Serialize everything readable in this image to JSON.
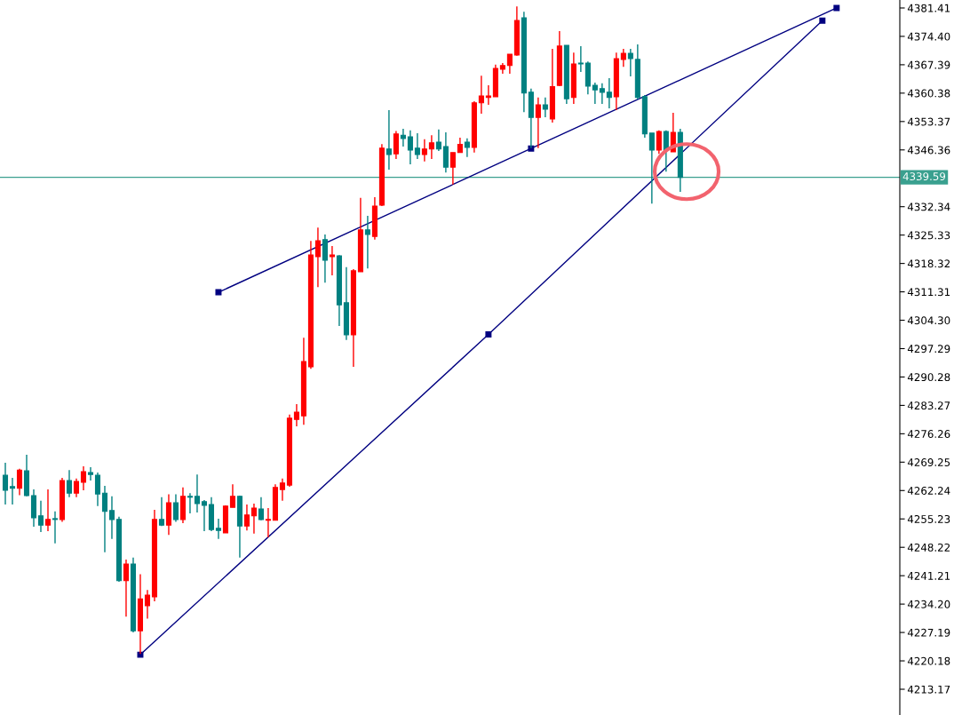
{
  "chart_data": {
    "type": "candlestick",
    "categories": [
      null,
      null,
      null,
      null,
      null,
      null,
      null,
      null,
      null,
      null,
      null,
      null,
      null,
      null,
      null,
      null,
      null,
      null,
      null,
      null,
      null,
      null,
      null,
      null,
      null,
      null,
      null,
      null,
      null,
      null,
      null,
      null,
      null,
      null,
      null,
      null,
      null,
      null,
      null,
      null,
      null,
      null,
      null,
      null,
      null,
      null,
      null,
      null,
      null,
      null,
      null,
      null,
      null,
      null,
      null,
      null,
      null,
      null,
      null,
      null,
      null,
      null,
      null,
      null,
      null,
      null,
      null,
      null,
      null,
      null,
      null,
      null,
      null,
      null,
      null,
      null,
      null,
      null,
      null,
      null,
      null,
      null,
      null,
      null,
      null,
      null,
      null,
      null,
      null,
      null,
      null,
      null,
      null,
      null,
      null,
      null,
      null,
      null,
      null,
      null,
      null,
      null,
      null,
      null,
      null,
      null,
      null,
      null,
      null,
      null,
      null,
      null,
      null,
      null,
      null,
      null,
      null,
      null,
      null,
      null,
      null,
      null,
      null,
      null,
      null,
      null
    ],
    "ohlc": [
      [
        4266.0,
        4269.1,
        4258.8,
        4262.3
      ],
      [
        4263.2,
        4265.4,
        4258.8,
        4262.8
      ],
      [
        4262.8,
        4267.6,
        4261.1,
        4267.3
      ],
      [
        4267.1,
        4271.1,
        4260.8,
        4261.0
      ],
      [
        4261.0,
        4262.5,
        4253.3,
        4255.5
      ],
      [
        4256.0,
        4259.7,
        4252.0,
        4253.7
      ],
      [
        4253.7,
        4262.5,
        4252.2,
        4255.1
      ],
      [
        4255.3,
        4257.1,
        4249.2,
        4255.1
      ],
      [
        4255.1,
        4265.4,
        4254.5,
        4264.7
      ],
      [
        4264.7,
        4267.3,
        4260.6,
        4261.6
      ],
      [
        4261.6,
        4265.2,
        4260.6,
        4264.5
      ],
      [
        4264.3,
        4268.2,
        4262.3,
        4266.9
      ],
      [
        4266.7,
        4268.0,
        4264.7,
        4266.2
      ],
      [
        4266.0,
        4266.7,
        4258.4,
        4261.4
      ],
      [
        4261.6,
        4263.4,
        4247.0,
        4257.1
      ],
      [
        4257.3,
        4260.8,
        4250.3,
        4255.1
      ],
      [
        4255.1,
        4255.8,
        4239.7,
        4240.0
      ],
      [
        4240.0,
        4245.2,
        4231.1,
        4244.1
      ],
      [
        4244.1,
        4245.7,
        4227.2,
        4227.6
      ],
      [
        4227.6,
        4241.6,
        4221.9,
        4235.5
      ],
      [
        4233.8,
        4237.7,
        4230.6,
        4236.4
      ],
      [
        4236.0,
        4257.5,
        4234.9,
        4255.1
      ],
      [
        4255.1,
        4260.6,
        4253.5,
        4253.7
      ],
      [
        4253.7,
        4261.3,
        4251.3,
        4259.2
      ],
      [
        4259.2,
        4261.3,
        4254.5,
        4255.1
      ],
      [
        4255.1,
        4263.0,
        4254.2,
        4260.8
      ],
      [
        4260.8,
        4261.6,
        4256.6,
        4260.6
      ],
      [
        4260.8,
        4266.2,
        4256.8,
        4259.0
      ],
      [
        4259.5,
        4259.9,
        4252.2,
        4258.6
      ],
      [
        4258.8,
        4260.6,
        4252.2,
        4252.6
      ],
      [
        4252.9,
        4255.3,
        4250.3,
        4252.4
      ],
      [
        4251.8,
        4258.6,
        4251.8,
        4258.4
      ],
      [
        4258.1,
        4263.8,
        4258.1,
        4260.8
      ],
      [
        4260.8,
        4261.0,
        4245.7,
        4253.5
      ],
      [
        4253.5,
        4258.8,
        4252.4,
        4256.2
      ],
      [
        4256.0,
        4259.0,
        4251.6,
        4257.9
      ],
      [
        4257.7,
        4260.6,
        4254.9,
        4255.1
      ],
      [
        4254.9,
        4257.9,
        4250.7,
        4255.1
      ],
      [
        4254.9,
        4263.8,
        4254.9,
        4263.0
      ],
      [
        4262.5,
        4265.2,
        4259.7,
        4264.1
      ],
      [
        4263.6,
        4281.0,
        4263.2,
        4280.1
      ],
      [
        4279.8,
        4283.6,
        4278.1,
        4281.6
      ],
      [
        4280.7,
        4300.0,
        4278.5,
        4294.1
      ],
      [
        4292.8,
        4323.9,
        4292.3,
        4320.4
      ],
      [
        4320.0,
        4327.2,
        4312.5,
        4323.9
      ],
      [
        4324.2,
        4325.5,
        4313.6,
        4319.1
      ],
      [
        4320.0,
        4322.6,
        4315.4,
        4320.4
      ],
      [
        4320.2,
        4320.4,
        4302.9,
        4308.1
      ],
      [
        4308.6,
        4317.4,
        4299.4,
        4300.7
      ],
      [
        4300.7,
        4316.9,
        4292.8,
        4316.5
      ],
      [
        4316.3,
        4334.5,
        4316.3,
        4326.6
      ],
      [
        4326.6,
        4330.1,
        4317.1,
        4325.5
      ],
      [
        4325.0,
        4334.7,
        4324.2,
        4332.5
      ],
      [
        4332.7,
        4347.8,
        4332.5,
        4346.8
      ],
      [
        4346.6,
        4356.2,
        4341.5,
        4345.2
      ],
      [
        4345.4,
        4351.0,
        4344.1,
        4350.3
      ],
      [
        4350.0,
        4351.6,
        4347.2,
        4349.2
      ],
      [
        4349.6,
        4351.2,
        4342.8,
        4346.3
      ],
      [
        4346.8,
        4350.5,
        4344.1,
        4345.2
      ],
      [
        4345.2,
        4349.0,
        4343.5,
        4346.6
      ],
      [
        4346.6,
        4350.0,
        4344.1,
        4348.1
      ],
      [
        4348.3,
        4351.4,
        4346.1,
        4346.6
      ],
      [
        4347.2,
        4350.7,
        4340.8,
        4342.1
      ],
      [
        4342.1,
        4345.7,
        4337.8,
        4345.7
      ],
      [
        4345.7,
        4349.4,
        4345.7,
        4347.7
      ],
      [
        4348.3,
        4349.2,
        4344.6,
        4347.0
      ],
      [
        4347.0,
        4358.4,
        4345.7,
        4358.0
      ],
      [
        4358.0,
        4364.7,
        4355.3,
        4359.7
      ],
      [
        4359.3,
        4362.3,
        4357.5,
        4359.7
      ],
      [
        4359.5,
        4367.4,
        4359.5,
        4366.5
      ],
      [
        4366.3,
        4367.8,
        4365.2,
        4367.2
      ],
      [
        4367.2,
        4370.0,
        4365.2,
        4370.0
      ],
      [
        4369.8,
        4381.8,
        4369.6,
        4378.3
      ],
      [
        4379.0,
        4380.5,
        4355.7,
        4360.4
      ],
      [
        4360.6,
        4361.5,
        4346.8,
        4354.4
      ],
      [
        4354.4,
        4359.3,
        4346.8,
        4357.5
      ],
      [
        4357.5,
        4359.3,
        4354.4,
        4356.4
      ],
      [
        4354.0,
        4371.3,
        4353.1,
        4362.0
      ],
      [
        4362.3,
        4375.7,
        4362.1,
        4372.0
      ],
      [
        4372.2,
        4372.2,
        4357.7,
        4359.0
      ],
      [
        4359.3,
        4370.4,
        4357.7,
        4367.6
      ],
      [
        4367.8,
        4372.0,
        4365.6,
        4367.6
      ],
      [
        4367.8,
        4368.2,
        4360.1,
        4362.1
      ],
      [
        4362.3,
        4363.0,
        4357.7,
        4361.2
      ],
      [
        4361.5,
        4362.8,
        4357.7,
        4360.6
      ],
      [
        4360.6,
        4364.1,
        4356.6,
        4359.3
      ],
      [
        4359.5,
        4370.4,
        4356.2,
        4368.9
      ],
      [
        4368.7,
        4371.3,
        4366.9,
        4370.2
      ],
      [
        4370.2,
        4371.3,
        4364.5,
        4368.9
      ],
      [
        4368.7,
        4372.4,
        4358.8,
        4359.3
      ],
      [
        4359.5,
        4359.9,
        4349.4,
        4350.3
      ],
      [
        4350.5,
        4350.5,
        4333.1,
        4346.3
      ],
      [
        4346.3,
        4351.2,
        4345.4,
        4350.9
      ],
      [
        4350.9,
        4351.2,
        4341.0,
        4346.3
      ],
      [
        4345.9,
        4355.5,
        4345.9,
        4350.7
      ],
      [
        4350.7,
        4351.6,
        4336.0,
        4339.59
      ],
      null,
      null,
      null,
      null,
      null,
      null,
      null,
      null,
      null,
      null,
      null,
      null,
      null,
      null,
      null,
      null,
      null,
      null,
      null,
      null,
      null,
      null,
      null,
      null,
      null,
      null,
      null,
      null,
      null,
      null
    ],
    "colors": [
      "#008080",
      "#008080",
      "#ff0000",
      "#008080",
      "#008080",
      "#008080",
      "#ff0000",
      "#008080",
      "#ff0000",
      "#008080",
      "#ff0000",
      "#ff0000",
      "#008080",
      "#008080",
      "#008080",
      "#008080",
      "#008080",
      "#ff0000",
      "#008080",
      "#ff0000",
      "#ff0000",
      "#ff0000",
      "#008080",
      "#ff0000",
      "#008080",
      "#ff0000",
      "#008080",
      "#008080",
      "#008080",
      "#008080",
      "#008080",
      "#ff0000",
      "#ff0000",
      "#008080",
      "#ff0000",
      "#ff0000",
      "#008080",
      "#ff0000",
      "#ff0000",
      "#ff0000",
      "#ff0000",
      "#ff0000",
      "#ff0000",
      "#ff0000",
      "#ff0000",
      "#008080",
      "#ff0000",
      "#008080",
      "#008080",
      "#ff0000",
      "#ff0000",
      "#008080",
      "#ff0000",
      "#ff0000",
      "#008080",
      "#ff0000",
      "#008080",
      "#008080",
      "#008080",
      "#ff0000",
      "#ff0000",
      "#008080",
      "#008080",
      "#ff0000",
      "#ff0000",
      "#008080",
      "#ff0000",
      "#ff0000",
      "#ff0000",
      "#ff0000",
      "#ff0000",
      "#ff0000",
      "#ff0000",
      "#008080",
      "#008080",
      "#ff0000",
      "#008080",
      "#ff0000",
      "#ff0000",
      "#008080",
      "#ff0000",
      "#008080",
      "#008080",
      "#008080",
      "#008080",
      "#008080",
      "#ff0000",
      "#ff0000",
      "#008080",
      "#008080",
      "#008080",
      "#008080",
      "#ff0000",
      "#008080",
      "#ff0000",
      "#008080",
      null,
      null,
      null,
      null,
      null,
      null,
      null,
      null,
      null,
      null,
      null,
      null,
      null,
      null,
      null,
      null,
      null,
      null,
      null,
      null,
      null,
      null,
      null,
      null,
      null,
      null,
      null,
      null,
      null,
      null
    ],
    "series": [
      {
        "type": "line",
        "color": "#000080",
        "values": [
          null,
          null,
          null,
          null,
          null,
          null,
          null,
          null,
          null,
          null,
          null,
          null,
          null,
          null,
          null,
          null,
          null,
          null,
          null,
          null,
          null,
          null,
          null,
          null,
          null,
          null,
          null,
          null,
          null,
          null,
          4311.2,
          null,
          null,
          null,
          null,
          null,
          null,
          null,
          null,
          null,
          null,
          null,
          null,
          null,
          null,
          null,
          null,
          null,
          null,
          null,
          null,
          null,
          null,
          null,
          null,
          null,
          null,
          null,
          null,
          null,
          null,
          null,
          null,
          null,
          null,
          null,
          null,
          null,
          null,
          null,
          null,
          null,
          null,
          null,
          4346.7,
          null,
          null,
          null,
          null,
          null,
          null,
          null,
          null,
          null,
          null,
          null,
          null,
          null,
          null,
          null,
          null,
          null,
          null,
          null,
          null,
          null,
          null,
          null,
          null,
          null,
          null,
          null,
          null,
          null,
          null,
          null,
          null,
          null,
          null,
          null,
          null,
          null,
          null,
          null,
          null,
          null,
          null,
          4381.4,
          null,
          null,
          null,
          null,
          null,
          null,
          null,
          null
        ]
      },
      {
        "type": "line",
        "color": "#000080",
        "values": [
          null,
          null,
          null,
          null,
          null,
          null,
          null,
          null,
          null,
          null,
          null,
          null,
          null,
          null,
          null,
          null,
          null,
          null,
          null,
          4221.7,
          null,
          null,
          null,
          null,
          null,
          null,
          null,
          null,
          null,
          null,
          null,
          null,
          null,
          null,
          null,
          null,
          null,
          null,
          null,
          null,
          null,
          null,
          null,
          null,
          null,
          null,
          null,
          null,
          null,
          null,
          null,
          null,
          null,
          null,
          null,
          null,
          null,
          null,
          null,
          null,
          null,
          null,
          null,
          null,
          null,
          null,
          null,
          null,
          4300.8,
          null,
          null,
          null,
          null,
          null,
          null,
          null,
          null,
          null,
          null,
          null,
          null,
          null,
          null,
          null,
          null,
          null,
          null,
          null,
          null,
          null,
          null,
          null,
          null,
          null,
          null,
          null,
          null,
          null,
          null,
          null,
          null,
          null,
          null,
          null,
          null,
          null,
          null,
          null,
          null,
          null,
          null,
          null,
          null,
          null,
          null,
          4378.3,
          null,
          null,
          null,
          null,
          null,
          null,
          null,
          null,
          null,
          null
        ]
      }
    ],
    "marker": "square",
    "ylim": [
      4206.81,
      4383.38
    ],
    "yticks": [
      4213.17,
      4220.18,
      4227.19,
      {
        "value": 4234.2,
        "label": "4234.20"
      },
      4241.21,
      4248.22,
      4255.23,
      4262.24,
      4269.25,
      4276.26,
      4283.27,
      4290.28,
      4297.29,
      {
        "value": 4304.3,
        "label": "4304.30"
      },
      4311.31,
      4318.32,
      4325.33,
      4332.34,
      4346.36,
      4353.37,
      4360.38,
      4367.39,
      {
        "value": 4374.4,
        "label": "4374.40"
      },
      4381.41
    ],
    "ref_lines": [
      {
        "axis": "y",
        "value": 4339.59,
        "label": "4339.59",
        "color": "#3aa08f"
      }
    ],
    "tick_labels": "y"
  }
}
